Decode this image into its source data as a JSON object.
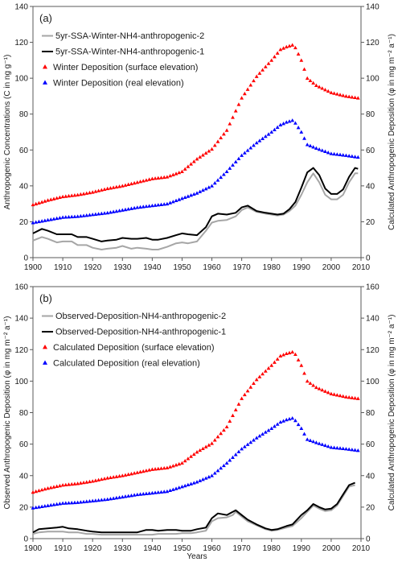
{
  "chart_data": [
    {
      "type": "line",
      "panel_label": "(a)",
      "ylabel_left": "Anthropogenic Concentrations (C in ng g⁻¹)",
      "ylabel_right": "Calculated Anthropogenic Deposition (φ in mg m⁻² a⁻¹)",
      "xlabel": "",
      "xlim": [
        1900,
        2010
      ],
      "ylim_left": [
        0,
        140
      ],
      "ylim_right": [
        0,
        140
      ],
      "xticks": [
        "1900",
        "1910",
        "1920",
        "1930",
        "1940",
        "1950",
        "1960",
        "1970",
        "1980",
        "1990",
        "2000",
        "2010"
      ],
      "yticks_left": [
        "0",
        "20",
        "40",
        "60",
        "80",
        "100",
        "120",
        "140"
      ],
      "yticks_right": [
        "0",
        "20",
        "40",
        "60",
        "80",
        "100",
        "120",
        "140"
      ],
      "legend_position": "top-left",
      "series": [
        {
          "name": "5yr-SSA-Winter-NH4-anthropogenic-2",
          "style": "line",
          "color": "#a6a6a6",
          "x": [
            1900,
            1903,
            1905,
            1908,
            1910,
            1913,
            1915,
            1918,
            1920,
            1923,
            1925,
            1928,
            1930,
            1933,
            1935,
            1938,
            1940,
            1942,
            1945,
            1948,
            1950,
            1952,
            1955,
            1958,
            1960,
            1962,
            1965,
            1968,
            1970,
            1972,
            1975,
            1978,
            1980,
            1982,
            1984,
            1986,
            1988,
            1990,
            1992,
            1994,
            1996,
            1998,
            2000,
            2002,
            2004,
            2006,
            2008,
            2009
          ],
          "y": [
            9.5,
            11.5,
            10.5,
            8.5,
            9,
            9,
            7,
            7,
            5.5,
            4.5,
            5,
            5.5,
            6.5,
            5,
            5.5,
            5,
            4.5,
            4.5,
            6,
            8,
            8.5,
            8,
            9,
            15,
            19.5,
            20.5,
            21,
            23,
            26.5,
            28,
            25.5,
            24.5,
            24,
            23.5,
            24,
            26,
            29,
            35,
            42,
            47,
            42,
            35,
            32.5,
            32.5,
            35,
            42,
            47,
            47
          ]
        },
        {
          "name": "5yr-SSA-Winter-NH4-anthropogenic-1",
          "style": "line",
          "color": "#000000",
          "x": [
            1900,
            1903,
            1905,
            1908,
            1910,
            1913,
            1915,
            1918,
            1920,
            1923,
            1925,
            1928,
            1930,
            1933,
            1935,
            1938,
            1940,
            1942,
            1945,
            1948,
            1950,
            1952,
            1955,
            1958,
            1960,
            1962,
            1965,
            1968,
            1970,
            1972,
            1975,
            1978,
            1980,
            1982,
            1984,
            1986,
            1988,
            1990,
            1992,
            1994,
            1996,
            1998,
            2000,
            2002,
            2004,
            2006,
            2008,
            2009
          ],
          "y": [
            13.5,
            16,
            15,
            13,
            13,
            13,
            11.5,
            11.5,
            10.5,
            9,
            9.5,
            10,
            11,
            10.5,
            10.5,
            11,
            10,
            10,
            11,
            12.5,
            13.5,
            13,
            12.5,
            17,
            23,
            24.5,
            24,
            25,
            28,
            29,
            26,
            25,
            24.5,
            24,
            24.5,
            27,
            31,
            39,
            47.5,
            50,
            46,
            38.5,
            35.5,
            35.5,
            38,
            45,
            50,
            49.5
          ]
        },
        {
          "name": "Winter Deposition (surface elevation)",
          "style": "marker",
          "color": "#ff0000",
          "x": [
            1900,
            1905,
            1910,
            1915,
            1920,
            1925,
            1930,
            1935,
            1940,
            1945,
            1950,
            1955,
            1960,
            1965,
            1970,
            1975,
            1980,
            1983,
            1985,
            1987,
            1988,
            1990,
            1992,
            1995,
            2000,
            2005,
            2009
          ],
          "y": [
            29.5,
            32,
            34,
            35,
            36.5,
            38.5,
            40,
            42,
            44,
            45,
            48,
            55,
            60.5,
            71,
            89,
            101,
            110,
            116,
            117.5,
            118.5,
            117,
            110,
            100,
            96,
            92,
            90,
            89
          ]
        },
        {
          "name": "Winter Deposition (real elevation)",
          "style": "marker",
          "color": "#0000ff",
          "x": [
            1900,
            1905,
            1910,
            1915,
            1920,
            1925,
            1930,
            1935,
            1940,
            1945,
            1950,
            1955,
            1960,
            1965,
            1970,
            1975,
            1980,
            1983,
            1985,
            1987,
            1988,
            1990,
            1992,
            1995,
            2000,
            2005,
            2009
          ],
          "y": [
            19.5,
            21,
            22.5,
            23,
            24,
            25,
            26.5,
            28,
            29,
            30,
            33,
            36,
            40,
            48,
            57,
            64,
            70,
            74,
            75.5,
            76.5,
            75,
            70,
            63,
            61,
            58,
            57,
            56
          ]
        }
      ]
    },
    {
      "type": "line",
      "panel_label": "(b)",
      "ylabel_left": "Observed Anthropogenic Deposition (φ in mg m⁻² a⁻¹)",
      "ylabel_right": "Calculated Anthropogenic Deposition (φ in mg m⁻² a⁻¹)",
      "xlabel": "Years",
      "xlim": [
        1900,
        2010
      ],
      "ylim_left": [
        0,
        160
      ],
      "ylim_right": [
        0,
        160
      ],
      "xticks": [
        "1900",
        "1910",
        "1920",
        "1930",
        "1940",
        "1950",
        "1960",
        "1970",
        "1980",
        "1990",
        "2000",
        "2010"
      ],
      "yticks_left": [
        "0",
        "20",
        "40",
        "60",
        "80",
        "100",
        "120",
        "140",
        "160"
      ],
      "yticks_right": [
        "0",
        "20",
        "40",
        "60",
        "80",
        "100",
        "120",
        "140",
        "160"
      ],
      "legend_position": "top-left",
      "series": [
        {
          "name": "Observed-Deposition-NH4-anthropogenic-2",
          "style": "line",
          "color": "#a6a6a6",
          "x": [
            1900,
            1902,
            1905,
            1908,
            1910,
            1912,
            1915,
            1918,
            1920,
            1923,
            1925,
            1928,
            1930,
            1933,
            1935,
            1938,
            1940,
            1942,
            1945,
            1948,
            1950,
            1953,
            1955,
            1958,
            1960,
            1962,
            1965,
            1967,
            1968,
            1970,
            1972,
            1975,
            1978,
            1980,
            1982,
            1985,
            1987,
            1990,
            1992,
            1994,
            1996,
            1998,
            2000,
            2002,
            2004,
            2006,
            2008
          ],
          "y": [
            3,
            4,
            4.5,
            4.5,
            4.5,
            4,
            4,
            3,
            3,
            2.5,
            2.5,
            2.5,
            2.5,
            2.5,
            2.5,
            2.5,
            2.5,
            3,
            3,
            3,
            3.5,
            3.5,
            4,
            5,
            11,
            13,
            13.5,
            15,
            17,
            14,
            11,
            8.5,
            6,
            5,
            5.5,
            7,
            8,
            13,
            17,
            21,
            19,
            17.5,
            18,
            21,
            27,
            33,
            34
          ]
        },
        {
          "name": "Observed-Deposition-NH4-anthropogenic-1",
          "style": "line",
          "color": "#000000",
          "x": [
            1900,
            1902,
            1905,
            1908,
            1910,
            1912,
            1915,
            1918,
            1920,
            1923,
            1925,
            1928,
            1930,
            1933,
            1935,
            1938,
            1940,
            1942,
            1945,
            1948,
            1950,
            1953,
            1955,
            1958,
            1960,
            1962,
            1965,
            1967,
            1968,
            1970,
            1972,
            1975,
            1978,
            1980,
            1982,
            1985,
            1987,
            1990,
            1992,
            1994,
            1996,
            1998,
            2000,
            2002,
            2004,
            2006,
            2008
          ],
          "y": [
            4,
            6,
            6.5,
            7,
            7.5,
            6.5,
            6,
            5,
            4.5,
            4,
            4,
            4,
            4,
            4,
            4,
            5.5,
            5.5,
            5,
            5.5,
            5.5,
            5,
            5,
            6,
            7,
            13,
            16,
            15,
            17,
            18,
            15,
            12,
            9,
            6.5,
            5.5,
            6,
            8,
            9,
            15,
            18,
            22,
            20,
            18.5,
            19,
            22,
            28,
            34,
            35.5
          ]
        },
        {
          "name": "Calculated Deposition (surface elevation)",
          "style": "marker",
          "color": "#ff0000",
          "x": [
            1900,
            1905,
            1910,
            1915,
            1920,
            1925,
            1930,
            1935,
            1940,
            1945,
            1950,
            1955,
            1960,
            1965,
            1970,
            1975,
            1980,
            1983,
            1985,
            1987,
            1988,
            1990,
            1992,
            1995,
            2000,
            2005,
            2009
          ],
          "y": [
            29.5,
            32,
            34,
            35,
            36.5,
            38.5,
            40,
            42,
            44,
            45,
            48,
            55,
            60.5,
            71,
            89,
            101,
            110,
            116,
            117.5,
            118.5,
            117,
            110,
            100,
            96,
            92,
            90,
            89
          ]
        },
        {
          "name": "Calculated Deposition (real elevation)",
          "style": "marker",
          "color": "#0000ff",
          "x": [
            1900,
            1905,
            1910,
            1915,
            1920,
            1925,
            1930,
            1935,
            1940,
            1945,
            1950,
            1955,
            1960,
            1965,
            1970,
            1975,
            1980,
            1983,
            1985,
            1987,
            1988,
            1990,
            1992,
            1995,
            2000,
            2005,
            2009
          ],
          "y": [
            19.5,
            21,
            22.5,
            23,
            24,
            25,
            26.5,
            28,
            29,
            30,
            33,
            36,
            40,
            48,
            57,
            64,
            70,
            74,
            75.5,
            76.5,
            75,
            70,
            63,
            61,
            58,
            57,
            56
          ]
        }
      ]
    }
  ]
}
